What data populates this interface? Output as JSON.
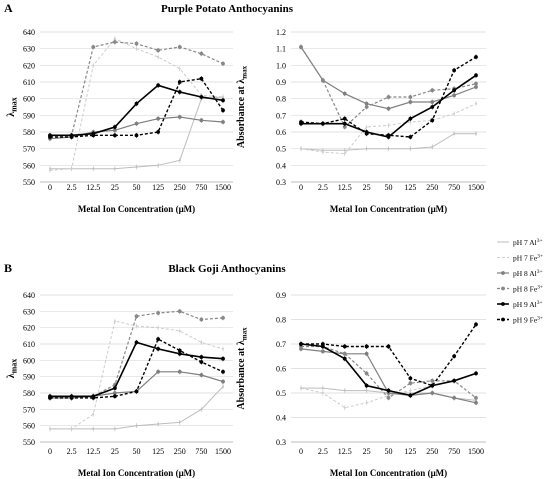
{
  "figure": {
    "panel_a": "A",
    "panel_b": "B",
    "title_a": "Purple Potato Anthocyanins",
    "title_b": "Black Goji Anthocyanins",
    "xlabel": "Metal Ion Concentration (μM)",
    "ylabel_lambda": "λmax",
    "ylabel_abs": "Absorbance at λmax"
  },
  "legend": [
    {
      "base": "pH 7 Al",
      "sup": "3+",
      "color": "#bdbdbd",
      "dash": false,
      "marker": "line",
      "width": 1.0
    },
    {
      "base": "pH 7 Fe",
      "sup": "3+",
      "color": "#cccccc",
      "dash": true,
      "marker": "line",
      "width": 1.0
    },
    {
      "base": "pH 8 Al",
      "sup": "3+",
      "color": "#7f7f7f",
      "dash": false,
      "marker": "dot",
      "width": 1.2
    },
    {
      "base": "pH 8 Fe",
      "sup": "3+",
      "color": "#888888",
      "dash": true,
      "marker": "dot",
      "width": 1.2
    },
    {
      "base": "pH 9 Al",
      "sup": "3+",
      "color": "#000000",
      "dash": false,
      "marker": "dot",
      "width": 1.6
    },
    {
      "base": "pH 9 Fe",
      "sup": "3+",
      "color": "#000000",
      "dash": true,
      "marker": "dot",
      "width": 1.4
    }
  ],
  "chart_data": [
    {
      "id": "a-lambda",
      "type": "line",
      "title": "Purple Potato Anthocyanins",
      "xlabel": "Metal Ion Concentration (μM)",
      "ylabel": "λmax",
      "categories": [
        "0",
        "2.5",
        "12.5",
        "25",
        "50",
        "125",
        "250",
        "750",
        "1500"
      ],
      "ylim": [
        550,
        640
      ],
      "ystep": 10,
      "ydec": 0,
      "series": [
        {
          "name": "pH 7 Al3+",
          "values": [
            558,
            558,
            558,
            558,
            559,
            560,
            563,
            600,
            601
          ]
        },
        {
          "name": "pH 7 Fe3+",
          "values": [
            557,
            558,
            620,
            636,
            630,
            625,
            618,
            602,
            601
          ]
        },
        {
          "name": "pH 8 Al3+",
          "values": [
            576,
            577,
            580,
            581,
            585,
            588,
            589,
            587,
            586
          ]
        },
        {
          "name": "pH 8 Fe3+",
          "values": [
            578,
            578,
            631,
            634,
            633,
            629,
            631,
            627,
            621
          ]
        },
        {
          "name": "pH 9 Al3+",
          "values": [
            578,
            578,
            579,
            583,
            597,
            608,
            604,
            601,
            599
          ]
        },
        {
          "name": "pH 9 Fe3+",
          "values": [
            577,
            577,
            578,
            578,
            578,
            580,
            610,
            612,
            593
          ]
        }
      ]
    },
    {
      "id": "a-abs",
      "type": "line",
      "title": "Purple Potato Anthocyanins",
      "xlabel": "Metal Ion Concentration (μM)",
      "ylabel": "Absorbance at λmax",
      "categories": [
        "0",
        "2.5",
        "12.5",
        "25",
        "50",
        "125",
        "250",
        "750",
        "1500"
      ],
      "ylim": [
        0.3,
        1.2
      ],
      "ystep": 0.1,
      "ydec": 1,
      "series": [
        {
          "name": "pH 7 Al3+",
          "values": [
            0.5,
            0.49,
            0.49,
            0.5,
            0.5,
            0.5,
            0.51,
            0.59,
            0.59
          ]
        },
        {
          "name": "pH 7 Fe3+",
          "values": [
            0.5,
            0.48,
            0.47,
            0.63,
            0.64,
            0.66,
            0.67,
            0.71,
            0.77
          ]
        },
        {
          "name": "pH 8 Al3+",
          "values": [
            1.11,
            0.91,
            0.83,
            0.77,
            0.74,
            0.78,
            0.78,
            0.82,
            0.87
          ]
        },
        {
          "name": "pH 8 Fe3+",
          "values": [
            1.11,
            0.91,
            0.63,
            0.75,
            0.81,
            0.81,
            0.85,
            0.86,
            0.89
          ]
        },
        {
          "name": "pH 9 Al3+",
          "values": [
            0.65,
            0.65,
            0.65,
            0.6,
            0.57,
            0.68,
            0.75,
            0.85,
            0.94
          ]
        },
        {
          "name": "pH 9 Fe3+",
          "values": [
            0.66,
            0.65,
            0.68,
            0.59,
            0.58,
            0.57,
            0.67,
            0.97,
            1.05
          ]
        }
      ]
    },
    {
      "id": "b-lambda",
      "type": "line",
      "title": "Black Goji Anthocyanins",
      "xlabel": "Metal Ion Concentration (μM)",
      "ylabel": "λmax",
      "categories": [
        "0",
        "2.5",
        "12.5",
        "25",
        "50",
        "125",
        "250",
        "750",
        "1500"
      ],
      "ylim": [
        550,
        640
      ],
      "ystep": 10,
      "ydec": 0,
      "series": [
        {
          "name": "pH 7 Al3+",
          "values": [
            558,
            558,
            558,
            558,
            560,
            561,
            562,
            570,
            584
          ]
        },
        {
          "name": "pH 7 Fe3+",
          "values": [
            558,
            558,
            567,
            624,
            621,
            620,
            618,
            611,
            607
          ]
        },
        {
          "name": "pH 8 Al3+",
          "values": [
            577,
            577,
            578,
            580,
            581,
            593,
            593,
            591,
            587
          ]
        },
        {
          "name": "pH 8 Fe3+",
          "values": [
            577,
            577,
            578,
            585,
            627,
            629,
            630,
            625,
            626
          ]
        },
        {
          "name": "pH 9 Al3+",
          "values": [
            578,
            578,
            578,
            583,
            611,
            607,
            604,
            602,
            601
          ]
        },
        {
          "name": "pH 9 Fe3+",
          "values": [
            577,
            577,
            577,
            578,
            581,
            613,
            606,
            599,
            593
          ]
        }
      ]
    },
    {
      "id": "b-abs",
      "type": "line",
      "title": "Black Goji Anthocyanins",
      "xlabel": "Metal Ion Concentration (μM)",
      "ylabel": "Absorbance at λmax",
      "categories": [
        "0",
        "2.5",
        "12.5",
        "25",
        "50",
        "125",
        "250",
        "750",
        "1500"
      ],
      "ylim": [
        0.3,
        0.9
      ],
      "ystep": 0.1,
      "ydec": 1,
      "series": [
        {
          "name": "pH 7 Al3+",
          "values": [
            0.52,
            0.52,
            0.51,
            0.51,
            0.5,
            0.5,
            0.5,
            0.48,
            0.47
          ]
        },
        {
          "name": "pH 7 Fe3+",
          "values": [
            0.52,
            0.5,
            0.44,
            0.46,
            0.49,
            0.51,
            0.53,
            0.55,
            0.58
          ]
        },
        {
          "name": "pH 8 Al3+",
          "values": [
            0.68,
            0.67,
            0.66,
            0.66,
            0.5,
            0.49,
            0.5,
            0.48,
            0.46
          ]
        },
        {
          "name": "pH 8 Fe3+",
          "values": [
            0.69,
            0.69,
            0.66,
            0.58,
            0.48,
            0.54,
            0.55,
            0.55,
            0.48
          ]
        },
        {
          "name": "pH 9 Al3+",
          "values": [
            0.7,
            0.69,
            0.64,
            0.53,
            0.51,
            0.49,
            0.53,
            0.55,
            0.58
          ]
        },
        {
          "name": "pH 9 Fe3+",
          "values": [
            0.7,
            0.7,
            0.69,
            0.69,
            0.69,
            0.56,
            0.53,
            0.65,
            0.78
          ]
        }
      ]
    }
  ]
}
